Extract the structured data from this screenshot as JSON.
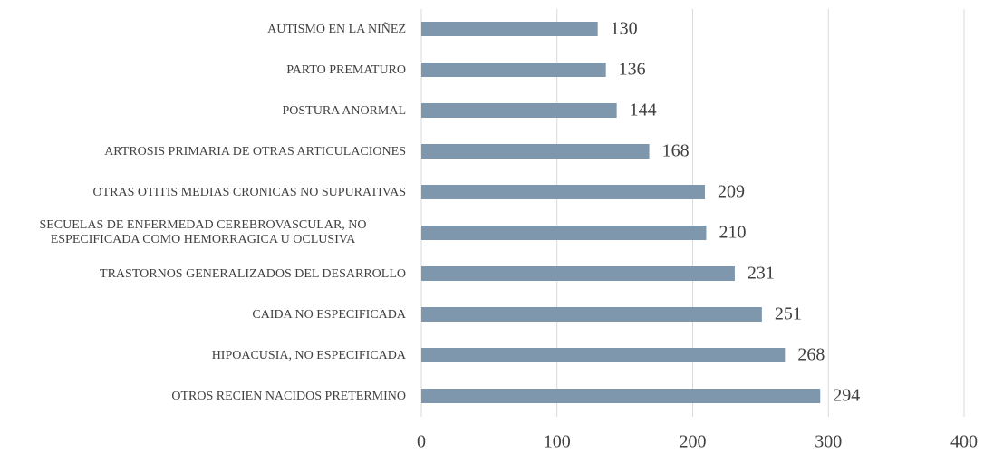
{
  "chart_data": {
    "type": "bar",
    "orientation": "horizontal",
    "categories": [
      "AUTISMO EN LA NIÑEZ",
      "PARTO PREMATURO",
      "POSTURA ANORMAL",
      "ARTROSIS PRIMARIA DE OTRAS ARTICULACIONES",
      "OTRAS OTITIS MEDIAS CRONICAS NO SUPURATIVAS",
      "SECUELAS DE ENFERMEDAD CEREBROVASCULAR, NO ESPECIFICADA COMO HEMORRAGICA U OCLUSIVA",
      "TRASTORNOS GENERALIZADOS DEL DESARROLLO",
      "CAIDA NO ESPECIFICADA",
      "HIPOACUSIA, NO ESPECIFICADA",
      "OTROS RECIEN NACIDOS PRETERMINO"
    ],
    "values": [
      130,
      136,
      144,
      168,
      209,
      210,
      231,
      251,
      268,
      294
    ],
    "color": "#7f97ad",
    "xlim": [
      0,
      400
    ],
    "xticks": [
      0,
      100,
      200,
      300,
      400
    ],
    "grid": true
  }
}
